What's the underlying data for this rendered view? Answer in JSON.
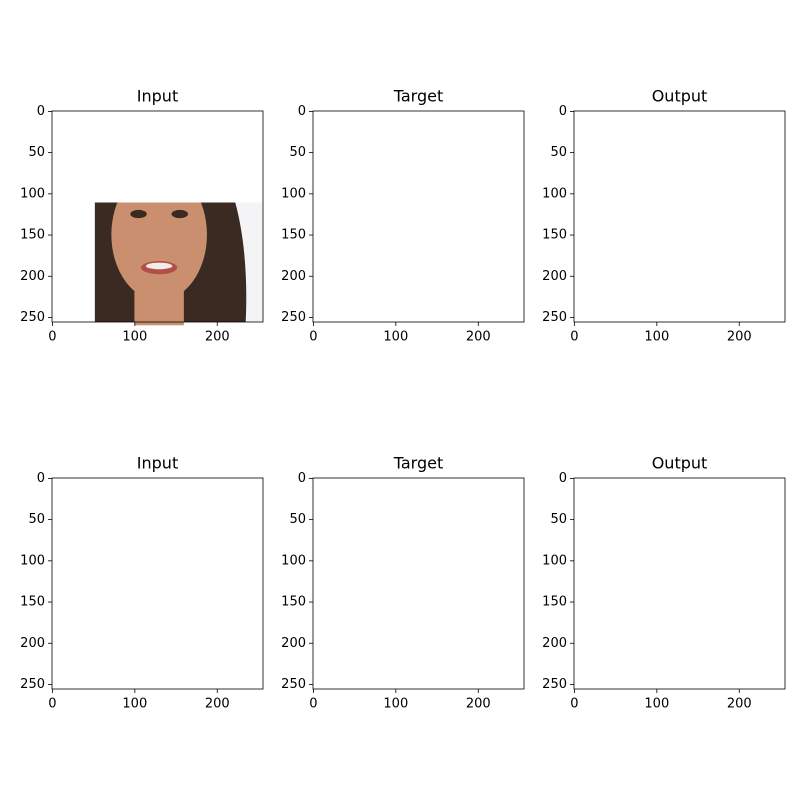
{
  "chart_data": [
    {
      "type": "image",
      "title": "Input",
      "xlim": [
        -0.5,
        255.5
      ],
      "ylim": [
        255.5,
        -0.5
      ],
      "xticks": [
        0,
        100,
        200
      ],
      "yticks": [
        0,
        50,
        100,
        150,
        200,
        250
      ]
    },
    {
      "type": "image",
      "title": "Target",
      "xlim": [
        -0.5,
        255.5
      ],
      "ylim": [
        255.5,
        -0.5
      ],
      "xticks": [
        0,
        100,
        200
      ],
      "yticks": [
        0,
        50,
        100,
        150,
        200,
        250
      ]
    },
    {
      "type": "image",
      "title": "Output",
      "xlim": [
        -0.5,
        255.5
      ],
      "ylim": [
        255.5,
        -0.5
      ],
      "xticks": [
        0,
        100,
        200
      ],
      "yticks": [
        0,
        50,
        100,
        150,
        200,
        250
      ]
    },
    {
      "type": "image",
      "title": "Input",
      "xlim": [
        -0.5,
        255.5
      ],
      "ylim": [
        255.5,
        -0.5
      ],
      "xticks": [
        0,
        100,
        200
      ],
      "yticks": [
        0,
        50,
        100,
        150,
        200,
        250
      ]
    },
    {
      "type": "image",
      "title": "Target",
      "xlim": [
        -0.5,
        255.5
      ],
      "ylim": [
        255.5,
        -0.5
      ],
      "xticks": [
        0,
        100,
        200
      ],
      "yticks": [
        0,
        50,
        100,
        150,
        200,
        250
      ]
    },
    {
      "type": "image",
      "title": "Output",
      "xlim": [
        -0.5,
        255.5
      ],
      "ylim": [
        255.5,
        -0.5
      ],
      "xticks": [
        0,
        100,
        200
      ],
      "yticks": [
        0,
        50,
        100,
        150,
        200,
        250
      ]
    }
  ]
}
